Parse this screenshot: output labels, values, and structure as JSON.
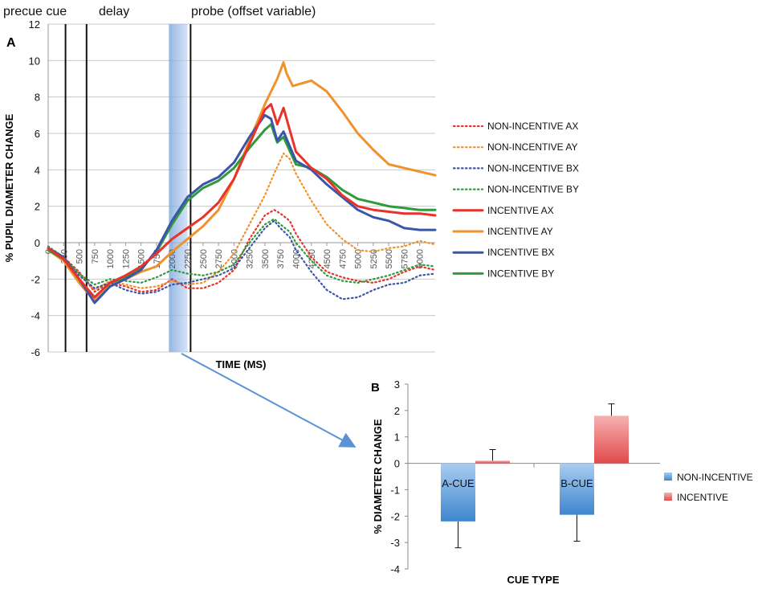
{
  "chart_data": [
    {
      "type": "line",
      "panel_label": "A",
      "xlabel": "TIME (MS)",
      "ylabel": "% PUPIL DIAMETER CHANGE",
      "xlim": [
        0,
        6250
      ],
      "ylim": [
        -6,
        12
      ],
      "yticks": [
        -6,
        -4,
        -2,
        0,
        2,
        4,
        6,
        8,
        10,
        12
      ],
      "xticks": [
        0,
        250,
        500,
        750,
        1000,
        1250,
        1500,
        1750,
        2000,
        2250,
        2500,
        2750,
        3000,
        3250,
        3500,
        3750,
        4000,
        4250,
        4500,
        4750,
        5000,
        5250,
        5500,
        5750,
        6000
      ],
      "phases": [
        {
          "name": "precue cue"
        },
        {
          "name": "delay"
        },
        {
          "name": "probe (offset variable)"
        }
      ],
      "phase_boundaries_ms": [
        280,
        620,
        2300
      ],
      "highlight_window_ms": [
        1950,
        2250
      ],
      "series": [
        {
          "name": "NON-INCENTIVE AX",
          "color": "#e8332a",
          "dash": true,
          "x": [
            0,
            250,
            500,
            750,
            1000,
            1250,
            1500,
            1750,
            2000,
            2250,
            2500,
            2750,
            3000,
            3250,
            3500,
            3650,
            3750,
            3900,
            4000,
            4250,
            4500,
            4750,
            5000,
            5250,
            5500,
            5750,
            6000,
            6250
          ],
          "y": [
            -0.3,
            -0.8,
            -1.6,
            -2.7,
            -2.2,
            -2.4,
            -2.7,
            -2.6,
            -2.0,
            -2.5,
            -2.5,
            -2.2,
            -1.5,
            0.2,
            1.5,
            1.8,
            1.6,
            1.2,
            0.5,
            -0.8,
            -1.6,
            -1.9,
            -2.1,
            -2.2,
            -2.0,
            -1.6,
            -1.3,
            -1.5
          ]
        },
        {
          "name": "NON-INCENTIVE AY",
          "color": "#f0922b",
          "dash": true,
          "x": [
            0,
            250,
            500,
            750,
            1000,
            1250,
            1500,
            1750,
            2000,
            2250,
            2500,
            2750,
            3000,
            3250,
            3500,
            3650,
            3800,
            3900,
            4000,
            4250,
            4500,
            4750,
            5000,
            5250,
            5500,
            5750,
            6000,
            6250
          ],
          "y": [
            -0.4,
            -0.9,
            -1.7,
            -2.6,
            -2.1,
            -2.3,
            -2.5,
            -2.4,
            -2.1,
            -2.3,
            -2.2,
            -1.6,
            -0.6,
            1.0,
            2.6,
            3.8,
            4.9,
            4.6,
            3.8,
            2.3,
            1.0,
            0.2,
            -0.4,
            -0.5,
            -0.3,
            -0.2,
            0.1,
            -0.1
          ]
        },
        {
          "name": "NON-INCENTIVE BX",
          "color": "#3b55a8",
          "dash": true,
          "x": [
            0,
            250,
            500,
            750,
            1000,
            1250,
            1500,
            1750,
            2000,
            2250,
            2500,
            2750,
            3000,
            3250,
            3500,
            3650,
            3750,
            3900,
            4000,
            4250,
            4500,
            4750,
            5000,
            5250,
            5500,
            5750,
            6000,
            6250
          ],
          "y": [
            -0.3,
            -0.9,
            -1.8,
            -2.5,
            -2.2,
            -2.6,
            -2.8,
            -2.7,
            -2.3,
            -2.2,
            -2.0,
            -1.8,
            -1.4,
            -0.3,
            0.8,
            1.2,
            0.8,
            0.3,
            -0.4,
            -1.6,
            -2.6,
            -3.1,
            -3.0,
            -2.6,
            -2.3,
            -2.2,
            -1.8,
            -1.7
          ]
        },
        {
          "name": "NON-INCENTIVE BY",
          "color": "#2f9a3c",
          "dash": true,
          "x": [
            0,
            250,
            500,
            750,
            1000,
            1250,
            1500,
            1750,
            2000,
            2250,
            2500,
            2750,
            3000,
            3250,
            3500,
            3650,
            3750,
            3900,
            4000,
            4250,
            4500,
            4750,
            5000,
            5250,
            5500,
            5750,
            6000,
            6250
          ],
          "y": [
            -0.2,
            -0.8,
            -1.7,
            -2.3,
            -2.0,
            -2.1,
            -2.2,
            -1.9,
            -1.5,
            -1.7,
            -1.8,
            -1.6,
            -1.2,
            0.0,
            1.0,
            1.3,
            1.0,
            0.6,
            0.0,
            -1.0,
            -1.8,
            -2.1,
            -2.2,
            -2.0,
            -1.8,
            -1.5,
            -1.2,
            -1.3
          ]
        },
        {
          "name": "INCENTIVE AX",
          "color": "#e8332a",
          "dash": false,
          "x": [
            0,
            250,
            500,
            750,
            1000,
            1250,
            1500,
            1750,
            2000,
            2250,
            2500,
            2750,
            3000,
            3250,
            3500,
            3600,
            3700,
            3800,
            4000,
            4250,
            4500,
            4750,
            5000,
            5250,
            5500,
            5750,
            6000,
            6250
          ],
          "y": [
            -0.3,
            -0.9,
            -2.0,
            -3.0,
            -2.2,
            -1.8,
            -1.3,
            -0.6,
            0.2,
            0.8,
            1.4,
            2.2,
            3.5,
            5.4,
            7.3,
            7.6,
            6.5,
            7.4,
            5.0,
            4.1,
            3.5,
            2.6,
            2.0,
            1.8,
            1.7,
            1.6,
            1.6,
            1.5
          ]
        },
        {
          "name": "INCENTIVE AY",
          "color": "#f0922b",
          "dash": false,
          "x": [
            0,
            250,
            500,
            750,
            1000,
            1250,
            1500,
            1750,
            2000,
            2250,
            2500,
            2750,
            3000,
            3250,
            3500,
            3700,
            3800,
            3850,
            3950,
            4250,
            4500,
            4750,
            5000,
            5250,
            5500,
            5750,
            6000,
            6250
          ],
          "y": [
            -0.4,
            -1.0,
            -2.2,
            -3.2,
            -2.4,
            -2.0,
            -1.6,
            -1.3,
            -0.5,
            0.2,
            0.9,
            1.8,
            3.5,
            5.6,
            7.6,
            9.0,
            9.9,
            9.3,
            8.6,
            8.9,
            8.3,
            7.2,
            6.0,
            5.1,
            4.3,
            4.1,
            3.9,
            3.7
          ]
        },
        {
          "name": "INCENTIVE BX",
          "color": "#3b55a8",
          "dash": false,
          "x": [
            0,
            250,
            500,
            750,
            1000,
            1250,
            1500,
            1750,
            2000,
            2250,
            2500,
            2750,
            3000,
            3250,
            3500,
            3600,
            3700,
            3800,
            4000,
            4250,
            4500,
            4750,
            5000,
            5250,
            5500,
            5750,
            6000,
            6250
          ],
          "y": [
            -0.3,
            -0.8,
            -2.0,
            -3.3,
            -2.4,
            -2.0,
            -1.5,
            -0.4,
            1.2,
            2.5,
            3.2,
            3.6,
            4.4,
            5.8,
            7.0,
            6.8,
            5.6,
            6.1,
            4.5,
            4.0,
            3.2,
            2.5,
            1.8,
            1.4,
            1.2,
            0.8,
            0.7,
            0.7
          ]
        },
        {
          "name": "INCENTIVE BY",
          "color": "#2f9a3c",
          "dash": false,
          "x": [
            0,
            250,
            500,
            750,
            1000,
            1250,
            1500,
            1750,
            2000,
            2250,
            2500,
            2750,
            3000,
            3250,
            3500,
            3600,
            3700,
            3800,
            4000,
            4250,
            4500,
            4750,
            5000,
            5250,
            5500,
            5750,
            6000,
            6250
          ],
          "y": [
            -0.4,
            -0.9,
            -2.0,
            -3.0,
            -2.2,
            -1.9,
            -1.4,
            -0.5,
            1.0,
            2.3,
            3.0,
            3.4,
            4.1,
            5.2,
            6.2,
            6.5,
            5.5,
            5.8,
            4.3,
            4.1,
            3.6,
            2.9,
            2.4,
            2.2,
            2.0,
            1.9,
            1.8,
            1.8
          ]
        }
      ]
    },
    {
      "type": "bar",
      "panel_label": "B",
      "xlabel": "CUE TYPE",
      "ylabel": "% DIAMETER CHANGE",
      "ylim": [
        -4,
        3
      ],
      "yticks": [
        -4,
        -3,
        -2,
        -1,
        0,
        1,
        2,
        3
      ],
      "categories": [
        "A-CUE",
        "B-CUE"
      ],
      "series": [
        {
          "name": "NON-INCENTIVE",
          "color": "#5b9bd5",
          "values": [
            -2.2,
            -1.95
          ],
          "errors": [
            1.0,
            1.0
          ]
        },
        {
          "name": "INCENTIVE",
          "color": "#e86b6b",
          "values": [
            0.1,
            1.8
          ],
          "errors": [
            0.42,
            0.45
          ]
        }
      ]
    }
  ]
}
